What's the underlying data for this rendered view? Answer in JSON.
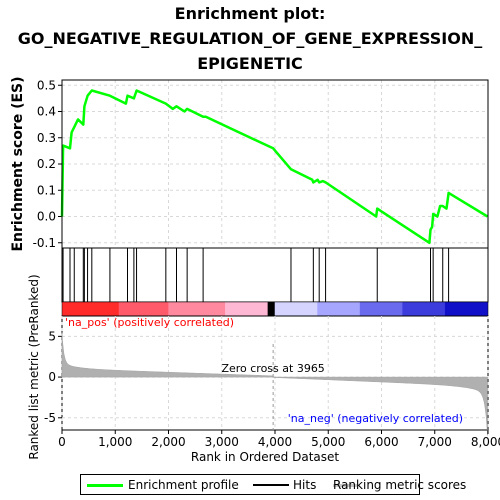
{
  "title_lines": [
    "Enrichment plot:",
    "GO_NEGATIVE_REGULATION_OF_GENE_EXPRESSION_",
    "EPIGENETIC"
  ],
  "colors": {
    "es_line": "#00ff00",
    "hit": "#000000",
    "metric_fill": "#b0b0b0",
    "grid": "#d8d8d8",
    "pos_label": "#ff0000",
    "neg_label": "#0000ff",
    "heat_pos": [
      "#ff2a2a",
      "#ff5a6a",
      "#ff8aa0",
      "#ffb8d4"
    ],
    "heat_neg": [
      "#d4d4ff",
      "#a6a6ff",
      "#6a6aee",
      "#3c3cdd",
      "#1010c8"
    ]
  },
  "chart_data": {
    "type": "line",
    "panels": {
      "enrichment": {
        "ylabel": "Enrichment score (ES)",
        "ylim": [
          -0.12,
          0.52
        ],
        "yticks": [
          -0.1,
          0.0,
          0.1,
          0.2,
          0.3,
          0.4,
          0.5
        ],
        "ytick_labels": [
          "-0.1",
          "0.0",
          "0.1",
          "0.2",
          "0.3",
          "0.4",
          "0.5"
        ],
        "grid": true,
        "series": [
          {
            "name": "Enrichment profile",
            "x": [
              0,
              20,
              150,
              180,
              300,
              400,
              420,
              480,
              560,
              900,
              1200,
              1230,
              1350,
              1400,
              1950,
              2080,
              2150,
              2300,
              2350,
              2650,
              2700,
              3965,
              4300,
              4700,
              4720,
              4800,
              4830,
              4900,
              4950,
              5900,
              5920,
              6900,
              6920,
              6950,
              6970,
              7050,
              7100,
              7150,
              7220,
              7260,
              7990
            ],
            "y": [
              0.0,
              0.27,
              0.26,
              0.32,
              0.37,
              0.35,
              0.42,
              0.46,
              0.48,
              0.46,
              0.43,
              0.46,
              0.45,
              0.48,
              0.43,
              0.41,
              0.42,
              0.4,
              0.41,
              0.38,
              0.38,
              0.26,
              0.18,
              0.14,
              0.13,
              0.14,
              0.13,
              0.135,
              0.13,
              0.0,
              0.03,
              -0.1,
              -0.05,
              -0.04,
              0.01,
              0.0,
              0.04,
              0.04,
              0.03,
              0.09,
              0.0
            ]
          }
        ]
      },
      "hits": {
        "name": "Hits",
        "positions": [
          20,
          150,
          230,
          400,
          420,
          480,
          560,
          900,
          1230,
          1350,
          1400,
          1950,
          2150,
          2350,
          2650,
          4300,
          4720,
          4830,
          4950,
          5920,
          6920,
          6970,
          7150,
          7260
        ]
      },
      "heatmap": {
        "pos_label": "'na_pos' (positively correlated)",
        "neg_label": "'na_neg' (negatively correlated)"
      },
      "metric": {
        "name": "Ranking metric scores",
        "ylabel": "Ranked list metric (PreRanked)",
        "ylim": [
          -6.5,
          7.5
        ],
        "yticks": [
          -5,
          0,
          5
        ],
        "ytick_labels": [
          "-5",
          "0",
          "5"
        ],
        "zero_cross": 3965,
        "zero_cross_label": "Zero cross at 3965"
      }
    },
    "xlabel": "Rank in Ordered Dataset",
    "xlim": [
      0,
      8000
    ],
    "xticks": [
      0,
      1000,
      2000,
      3000,
      4000,
      5000,
      6000,
      7000,
      8000
    ],
    "xtick_labels": [
      "0",
      "1,000",
      "2,000",
      "3,000",
      "4,000",
      "5,000",
      "6,000",
      "7,000",
      "8,000"
    ],
    "n_genes": 7990
  },
  "legend": {
    "items": [
      {
        "label": "Enrichment profile",
        "color": "#00ff00"
      },
      {
        "label": "Hits",
        "color": "#000000"
      },
      {
        "label": "Ranking metric scores",
        "color": "#c8c8c8"
      }
    ]
  }
}
